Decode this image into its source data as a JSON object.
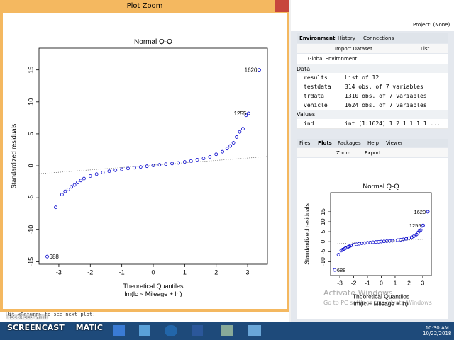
{
  "plot_zoom": {
    "window_title": "Plot Zoom",
    "title": "Normal Q-Q",
    "xlabel": "Theoretical Quantiles",
    "subtitle": "lm(lc ~ Mileage + lh)",
    "ylabel": "Standardized residuals",
    "xlim": [
      -3.63,
      3.63
    ],
    "ylim": [
      -15.4,
      18.4
    ],
    "xticks": [
      -3,
      -2,
      -1,
      0,
      1,
      2,
      3
    ],
    "yticks": [
      -15,
      -10,
      -5,
      0,
      5,
      10,
      15
    ],
    "points": {
      "x": [
        -3.1,
        -2.9,
        -2.8,
        -2.7,
        -2.6,
        -2.5,
        -2.4,
        -2.3,
        -2.2,
        -2.0,
        -1.8,
        -1.6,
        -1.4,
        -1.2,
        -1.0,
        -0.8,
        -0.6,
        -0.4,
        -0.2,
        0,
        0.2,
        0.4,
        0.6,
        0.8,
        1.0,
        1.2,
        1.4,
        1.6,
        1.8,
        2.0,
        2.2,
        2.35,
        2.45,
        2.55,
        2.65,
        2.75,
        2.85,
        2.95
      ],
      "y": [
        -6.5,
        -4.5,
        -4,
        -3.7,
        -3.3,
        -3,
        -2.6,
        -2.3,
        -2,
        -1.6,
        -1.3,
        -1.05,
        -0.85,
        -0.7,
        -0.55,
        -0.42,
        -0.3,
        -0.18,
        -0.07,
        0.05,
        0.15,
        0.25,
        0.35,
        0.45,
        0.6,
        0.75,
        0.95,
        1.15,
        1.4,
        1.8,
        2.2,
        2.7,
        3.1,
        3.6,
        4.5,
        5.3,
        5.8,
        7.9
      ]
    },
    "labeled_points": [
      {
        "x": -3.37,
        "y": -14.2,
        "label": "688"
      },
      {
        "x": 3.03,
        "y": 8.2,
        "label": "1255"
      },
      {
        "x": 3.37,
        "y": 15,
        "label": "1620"
      }
    ],
    "ref_line": {
      "intercept": 0.1,
      "slope": 0.37
    }
  },
  "plots_pane": {
    "xlim": [
      -3.67,
      3.62
    ],
    "ylim": [
      -17,
      24.6
    ],
    "xticks": [
      -3,
      -2,
      -1,
      0,
      1,
      2,
      3
    ],
    "yticks": [
      -10,
      -5,
      0,
      5,
      10,
      15
    ]
  },
  "rstudio": {
    "project": "Project: (None)",
    "env_tabs": [
      "Environment",
      "History",
      "Connections"
    ],
    "import": "Import Dataset",
    "list": "List",
    "scope": "Global Environment",
    "data_header": "Data",
    "rows": [
      [
        "results",
        "List of 12"
      ],
      [
        "testdata",
        "314 obs. of 7 variables"
      ],
      [
        "trdata",
        "1310 obs. of 7 variables"
      ],
      [
        "vehicle",
        "1624 obs. of 7 variables"
      ]
    ],
    "values_header": "Values",
    "values_rows": [
      [
        "ind",
        "int [1:1624] 1 2 1 1 1 1 ..."
      ]
    ],
    "files_tabs": [
      "Files",
      "Plots",
      "Packages",
      "Help",
      "Viewer"
    ],
    "zoom": "Zoom",
    "export": "Export"
  },
  "console": "Hit <Return> to see next plot:",
  "watermark": {
    "title": "Activate Windows",
    "text": "Go to PC settings to activate Windows"
  },
  "recorder": {
    "recorded": "RECORDED WITH",
    "brand1": "SCREENCAST",
    "brand2": "MATIC"
  },
  "taskbar": {
    "time": "10:30 AM",
    "date": "10/22/2018"
  }
}
